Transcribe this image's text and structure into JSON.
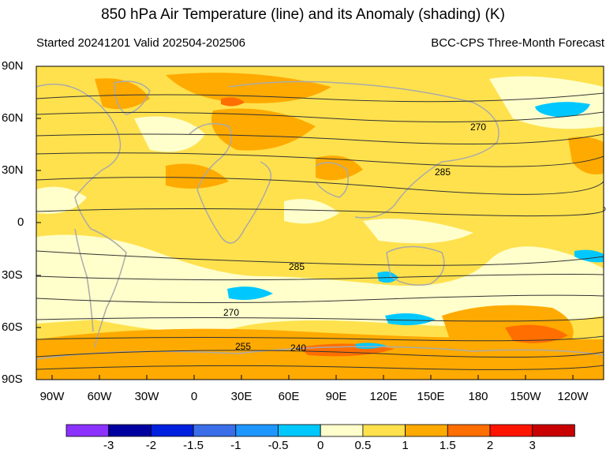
{
  "title": "850 hPa Air Temperature (line) and its Anomaly (shading) (K)",
  "subtitle_left": "Started 20241201  Valid 202504-202506",
  "subtitle_right": "BCC-CPS Three-Month Forecast",
  "lat_labels": [
    "90N",
    "60N",
    "30N",
    "0",
    "30S",
    "60S",
    "90S"
  ],
  "lon_labels": [
    "90W",
    "60W",
    "30W",
    "0",
    "30E",
    "60E",
    "90E",
    "120E",
    "150E",
    "180",
    "150W",
    "120W"
  ],
  "contour_labels": [
    "270",
    "285",
    "285",
    "270",
    "255",
    "240"
  ],
  "colorbar": {
    "colors": [
      "#8c32ff",
      "#0000a0",
      "#0020e0",
      "#3a6ee8",
      "#1e96ff",
      "#00c8ff",
      "#ffffcc",
      "#ffe14d",
      "#ffaa00",
      "#ff6e00",
      "#ff1400",
      "#c80000"
    ],
    "labels": [
      "-3",
      "-2",
      "-1.5",
      "-1",
      "-0.5",
      "0",
      "0.5",
      "1",
      "1.5",
      "2",
      "3"
    ]
  },
  "colors": {
    "near_zero": "#ffffcc",
    "anom_0_5": "#ffe14d",
    "anom_1": "#ffaa00",
    "anom_1_5": "#ff6e00",
    "neg_small": "#00c8ff",
    "coastline": "#aaaaaa",
    "contour": "#333333"
  }
}
